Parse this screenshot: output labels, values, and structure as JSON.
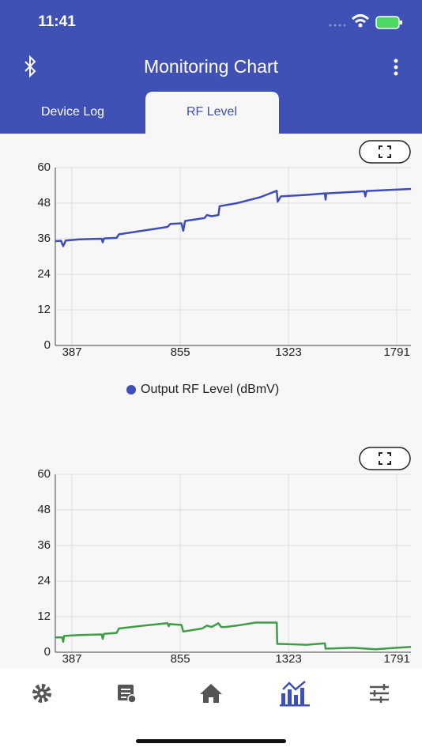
{
  "status_bar": {
    "time": "11:41"
  },
  "app_bar": {
    "title": "Monitoring Chart"
  },
  "tabs": [
    "Device Log",
    "RF Level"
  ],
  "chart_data": [
    {
      "type": "line",
      "xlim": [
        315,
        1852
      ],
      "ylim": [
        0,
        60
      ],
      "xticks": [
        387,
        855,
        1323,
        1791
      ],
      "yticks": [
        0,
        12,
        24,
        36,
        48,
        60
      ],
      "grid": true,
      "series": [
        {
          "name": "Output RF Level (dBmV)",
          "color": "#3f4db8",
          "x": [
            315,
            340,
            349,
            360,
            420,
            515,
            520,
            525,
            580,
            590,
            700,
            800,
            812,
            860,
            868,
            876,
            960,
            970,
            990,
            1020,
            1025,
            1100,
            1200,
            1272,
            1276,
            1290,
            1400,
            1480,
            1483,
            1486,
            1650,
            1655,
            1660,
            1852
          ],
          "values": [
            35.2,
            35.3,
            33.5,
            35.4,
            35.8,
            36,
            34.8,
            36.1,
            36.3,
            37.5,
            38.8,
            40,
            41,
            41.2,
            38.7,
            42,
            43,
            44,
            43.6,
            44,
            47,
            48,
            50,
            52.2,
            48.5,
            50.3,
            50.8,
            51.3,
            49.2,
            51.3,
            52,
            50.3,
            52.1,
            52.8
          ]
        }
      ]
    },
    {
      "type": "line",
      "xlim": [
        315,
        1852
      ],
      "ylim": [
        0,
        60
      ],
      "xticks": [
        387,
        855,
        1323,
        1791
      ],
      "yticks": [
        0,
        12,
        24,
        36,
        48,
        60
      ],
      "grid": true,
      "series": [
        {
          "color": "#3f9c47",
          "x": [
            315,
            345,
            349,
            353,
            420,
            515,
            520,
            525,
            580,
            590,
            700,
            800,
            805,
            810,
            860,
            868,
            950,
            970,
            990,
            1020,
            1032,
            1050,
            1100,
            1180,
            1272,
            1274,
            1290,
            1400,
            1480,
            1483,
            1600,
            1700,
            1790,
            1852
          ],
          "values": [
            5,
            5,
            3.5,
            5.5,
            5.8,
            6,
            4.5,
            6.2,
            6.5,
            8,
            9,
            9.8,
            8.8,
            9.5,
            9.2,
            7,
            8,
            9,
            8.5,
            9.8,
            8.5,
            8.5,
            9,
            10,
            10,
            2.8,
            2.8,
            2.5,
            3,
            1.2,
            1.5,
            1,
            1.5,
            1.8
          ]
        }
      ]
    }
  ]
}
